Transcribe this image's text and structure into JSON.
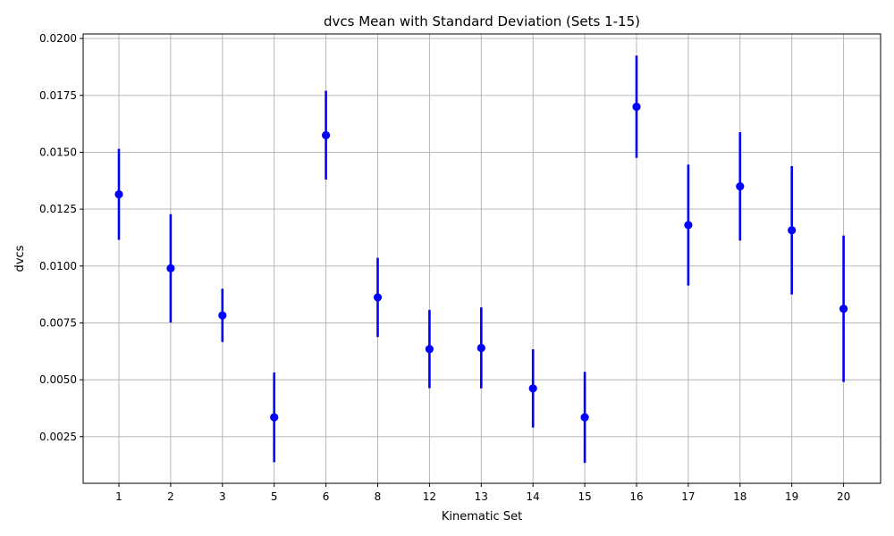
{
  "chart_data": {
    "type": "scatter",
    "title": "dvcs Mean with Standard Deviation (Sets 1-15)",
    "xlabel": "Kinematic Set",
    "ylabel": "dvcs",
    "categories": [
      "1",
      "2",
      "3",
      "5",
      "6",
      "8",
      "12",
      "13",
      "14",
      "15",
      "16",
      "17",
      "18",
      "19",
      "20"
    ],
    "series": [
      {
        "mean": [
          0.01315,
          0.0099,
          0.00783,
          0.00335,
          0.01575,
          0.00862,
          0.00635,
          0.0064,
          0.00462,
          0.00335,
          0.017,
          0.0118,
          0.0135,
          0.01157,
          0.00812
        ],
        "std": [
          0.002,
          0.00238,
          0.00117,
          0.00197,
          0.00195,
          0.00174,
          0.00172,
          0.00178,
          0.00172,
          0.002,
          0.00225,
          0.00266,
          0.00238,
          0.00282,
          0.00322
        ],
        "color": "#0000ff"
      }
    ],
    "yticks": [
      "0.0025",
      "0.0050",
      "0.0075",
      "0.0100",
      "0.0125",
      "0.0150",
      "0.0175",
      "0.0200"
    ],
    "ylim": [
      0.00045,
      0.0202
    ],
    "grid": true
  }
}
